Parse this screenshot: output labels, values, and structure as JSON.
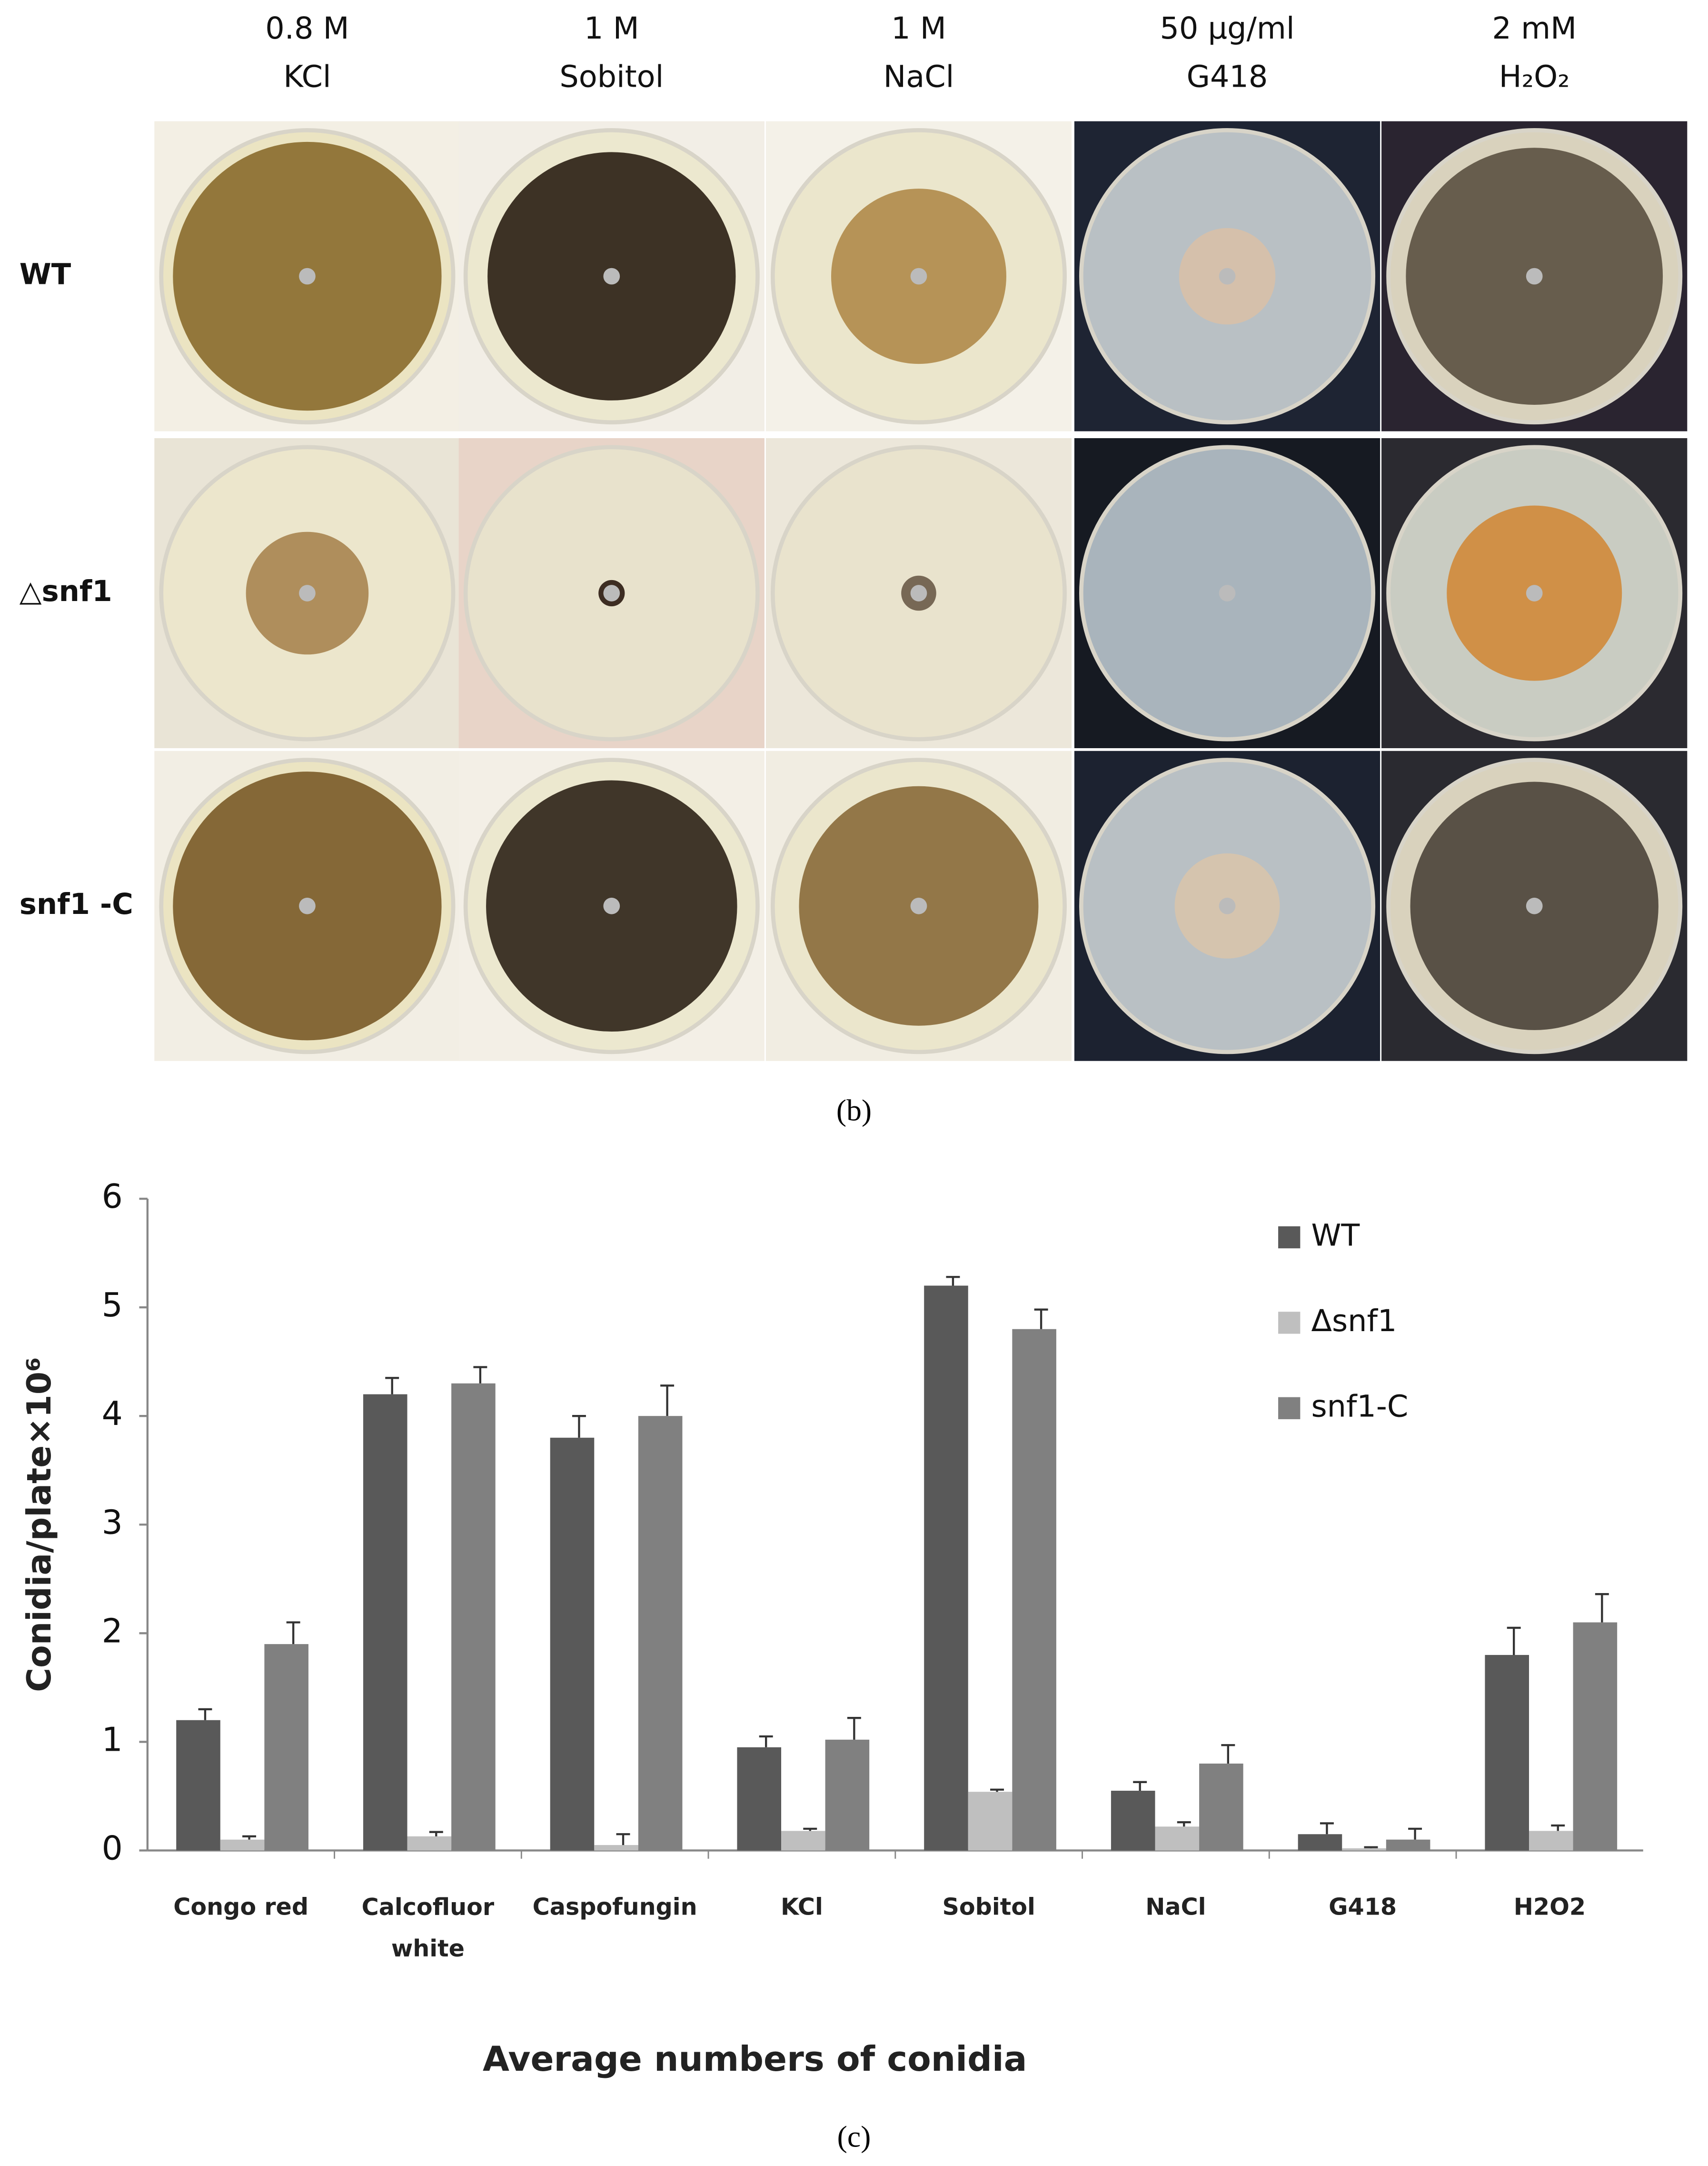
{
  "panel_b": {
    "columns": [
      [
        "0.8 M",
        "KCl"
      ],
      [
        "1 M",
        "Sobitol"
      ],
      [
        "1 M",
        "NaCl"
      ],
      [
        "50 μg/ml",
        "G418"
      ],
      [
        "2 mM",
        "H₂O₂"
      ]
    ],
    "rows": [
      "WT",
      "△snf1",
      "snf1 -C"
    ],
    "label": "(b)"
  },
  "chart_data": {
    "type": "bar",
    "categories": [
      "Congo red",
      "Calcofluor white",
      "Caspofungin",
      "KCl",
      "Sobitol",
      "NaCl",
      "G418",
      "H2O2"
    ],
    "series": [
      {
        "name": "WT",
        "color": "#595959",
        "values": [
          1.2,
          4.2,
          3.8,
          0.95,
          5.2,
          0.55,
          0.15,
          1.8
        ],
        "errors": [
          0.1,
          0.15,
          0.2,
          0.1,
          0.08,
          0.08,
          0.1,
          0.25
        ]
      },
      {
        "name": "Δsnf1",
        "color": "#bfbfbf",
        "values": [
          0.1,
          0.13,
          0.05,
          0.18,
          0.54,
          0.22,
          0.02,
          0.18
        ],
        "errors": [
          0.03,
          0.04,
          0.1,
          0.02,
          0.02,
          0.04,
          0.01,
          0.05
        ]
      },
      {
        "name": "snf1-C",
        "color": "#808080",
        "values": [
          1.9,
          4.3,
          4.0,
          1.02,
          4.8,
          0.8,
          0.1,
          2.1
        ],
        "errors": [
          0.2,
          0.15,
          0.28,
          0.2,
          0.18,
          0.17,
          0.1,
          0.26
        ]
      }
    ],
    "ylim": [
      0,
      6
    ],
    "yticks": [
      0,
      1,
      2,
      3,
      4,
      5,
      6
    ],
    "ylabel": "Conidia/plate×10⁶",
    "xlabel": "Average numbers of conidia",
    "legend": "upper right",
    "grid": false,
    "label": "(c)"
  }
}
